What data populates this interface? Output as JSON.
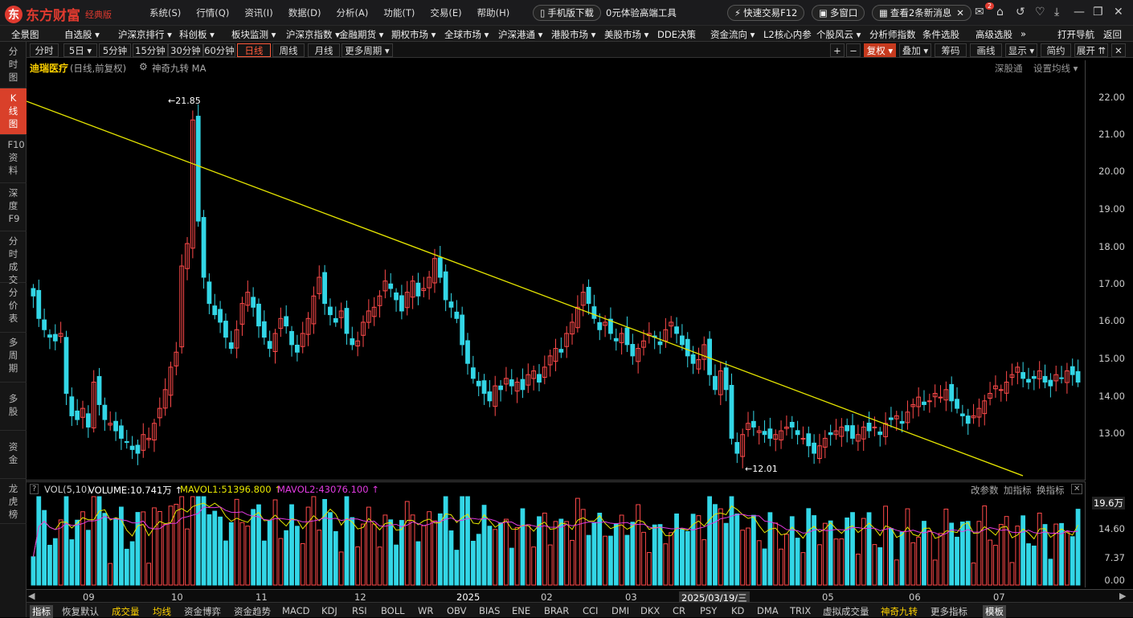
{
  "app": {
    "logo": "东方财富",
    "edition": "经典版",
    "menu": [
      "系统(S)",
      "行情(Q)",
      "资讯(I)",
      "数据(D)",
      "分析(A)",
      "功能(T)",
      "交易(E)",
      "帮助(H)"
    ],
    "mobile": "手机版下载",
    "promo": "0元体验高端工具",
    "quick_trade": "快速交易F12",
    "multi_window": "多窗口",
    "news": "查看2条新消息",
    "badge": "2"
  },
  "menubar": [
    "全景图",
    "自选股 ▾",
    "沪深京排行 ▾",
    "科创板 ▾",
    "板块监测 ▾",
    "沪深京指数 ▾",
    "金融期货 ▾",
    "期权市场 ▾",
    "全球市场 ▾",
    "沪深港通 ▾",
    "港股市场 ▾",
    "美股市场 ▾",
    "DDE决策",
    "资金流向 ▾",
    "L2核心内参",
    "个股风云 ▾",
    "分析师指数",
    "条件选股",
    "高级选股",
    "»",
    "打开导航",
    "返回"
  ],
  "left_nav": [
    "分时图",
    "K线图",
    "F10资料",
    "深度F9",
    "分时成交",
    "分价表",
    "多周期",
    "多股",
    "资金",
    "龙虎榜"
  ],
  "toolbar": {
    "periods": [
      "分时",
      "5日 ▾",
      "5分钟",
      "15分钟",
      "30分钟",
      "60分钟",
      "日线",
      "周线",
      "月线",
      "更多周期 ▾"
    ],
    "right": [
      "+",
      "−",
      "复权 ▾",
      "叠加 ▾",
      "筹码",
      "画线",
      "显示 ▾",
      "简约",
      "展开 ⇈",
      "✕"
    ]
  },
  "stock": {
    "name": "迪瑞医疗",
    "mode": "(日线,前复权)",
    "indicator": "神奇九转 MA",
    "links": [
      "深股通",
      "设置均线 ▾"
    ]
  },
  "vol_header": {
    "label": "VOL(5,10)",
    "volume": "VOLUME:10.741万 ↑",
    "ma1": "MAVOL1:51396.800 ↑",
    "ma2": "MAVOL2:43076.100 ↑",
    "links": [
      "改参数",
      "加指标",
      "换指标"
    ]
  },
  "price_axis": [
    "22.00",
    "21.00",
    "20.00",
    "19.00",
    "18.00",
    "17.00",
    "16.00",
    "15.00",
    "14.00",
    "13.00"
  ],
  "vol_axis": [
    "19.6万",
    "14.60",
    "7.37",
    "0.00"
  ],
  "dates": [
    "09",
    "10",
    "11",
    "12",
    "2025",
    "02",
    "03",
    "2025/03/19/三",
    "05",
    "06",
    "07"
  ],
  "bottom_tabs": [
    "指标",
    "恢复默认",
    "成交量",
    "均线",
    "资金博弈",
    "资金趋势",
    "MACD",
    "KDJ",
    "RSI",
    "BOLL",
    "WR",
    "OBV",
    "BIAS",
    "ENE",
    "BRAR",
    "CCI",
    "DMI",
    "DKX",
    "CR",
    "PSY",
    "KD",
    "DMA",
    "TRIX",
    "虚拟成交量",
    "神奇九转",
    "更多指标",
    "模板"
  ],
  "annotations": {
    "high": "←21.85",
    "low": "←12.01"
  },
  "colors": {
    "up": "#ff4a4a",
    "down": "#33d6e6",
    "ma1": "#e6e600",
    "ma2": "#e03ae0",
    "trend": "#e6e600",
    "td_sell": "#ff9a1e",
    "td_buy": "#e6a21e",
    "td9": "#3adc3a"
  },
  "chart_data": {
    "type": "candlestick",
    "ylim": [
      12,
      22.3
    ],
    "closes": [
      16.8,
      16.2,
      15.9,
      15.7,
      15.6,
      15.8,
      14.2,
      13.6,
      13.5,
      13.8,
      13.3,
      14.5,
      13.9,
      13.5,
      13.4,
      13.2,
      13.0,
      12.9,
      12.7,
      12.6,
      13.1,
      13.0,
      13.4,
      13.8,
      14.3,
      14.9,
      15.3,
      17.6,
      18.2,
      21.5,
      18.8,
      17.3,
      16.6,
      16.3,
      16.1,
      15.7,
      15.4,
      15.9,
      16.6,
      16.9,
      16.5,
      16.0,
      15.7,
      15.4,
      15.8,
      16.2,
      16.0,
      15.5,
      15.3,
      15.8,
      16.2,
      16.8,
      17.3,
      16.6,
      16.3,
      16.1,
      16.4,
      15.8,
      15.5,
      15.6,
      16.1,
      16.4,
      16.5,
      16.8,
      17.2,
      17.0,
      16.7,
      16.4,
      16.9,
      17.2,
      16.8,
      17.0,
      17.3,
      17.8,
      17.3,
      16.7,
      16.5,
      16.2,
      15.5,
      15.0,
      14.6,
      14.4,
      14.2,
      14.0,
      14.4,
      14.3,
      14.6,
      14.4,
      14.5,
      14.3,
      14.7,
      14.8,
      14.5,
      14.9,
      15.2,
      15.4,
      15.3,
      15.8,
      16.1,
      16.5,
      16.9,
      16.6,
      16.2,
      15.9,
      16.1,
      15.8,
      15.6,
      15.8,
      15.5,
      15.2,
      15.4,
      15.6,
      15.8,
      15.7,
      15.5,
      15.9,
      16.1,
      15.8,
      15.5,
      15.2,
      15.0,
      15.1,
      15.5,
      14.7,
      14.3,
      14.8,
      14.3,
      13.0,
      12.6,
      13.1,
      13.4,
      13.3,
      13.2,
      13.1,
      13.0,
      13.1,
      13.2,
      13.3,
      13.3,
      13.1,
      13.0,
      12.8,
      12.6,
      12.8,
      13.0,
      13.1,
      13.2,
      13.3,
      13.2,
      13.0,
      13.1,
      13.3,
      13.2,
      13.3,
      13.1,
      13.4,
      13.5,
      13.6,
      13.4,
      13.7,
      13.9,
      14.1,
      13.9,
      14.0,
      14.2,
      14.1,
      14.3,
      14.0,
      13.8,
      13.6,
      13.4,
      13.6,
      13.8,
      14.0,
      14.2,
      14.4,
      14.3,
      14.5,
      14.7,
      14.9,
      14.6,
      14.5,
      14.6,
      14.8,
      14.5,
      14.4,
      14.7,
      14.6,
      14.8,
      14.7,
      14.5
    ]
  }
}
